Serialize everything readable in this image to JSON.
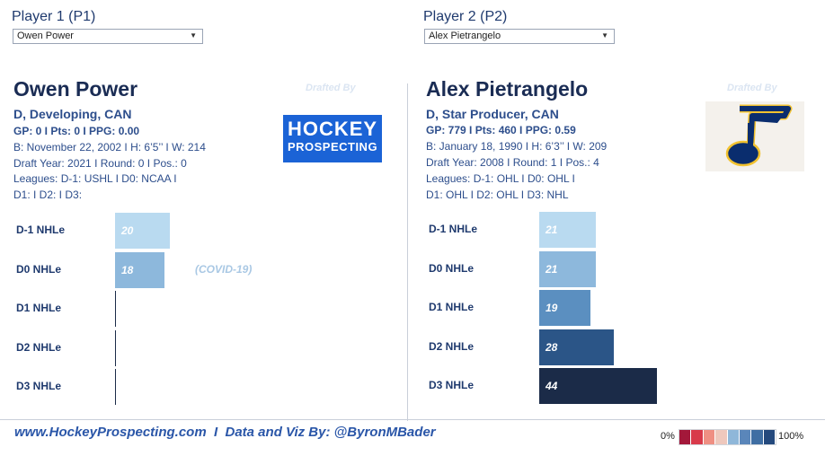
{
  "p1": {
    "selector_label": "Player 1 (P1)",
    "selected": "Owen Power",
    "name": "Owen Power",
    "position": "D, Developing, CAN",
    "stats": "GP: 0 I Pts: 0 I PPG: 0.00",
    "bio": "B: November 22, 2002 I H: 6’5’’ I W: 214",
    "draft": "Draft Year: 2021 I Round: 0 I Pos.: 0",
    "leagues1": "Leagues: D-1: USHL I D0: NCAA I",
    "leagues2": "D1:  I D2:  I D3:",
    "drafted_by": "Drafted By",
    "logo_line1": "HOCKEY",
    "logo_line2": "PROSPECTING",
    "note": "(COVID-19)",
    "rows": [
      {
        "label": "D-1 NHLe",
        "value": 20,
        "display": "20",
        "color": "#b9daf0"
      },
      {
        "label": "D0 NHLe",
        "value": 18,
        "display": "18",
        "color": "#8db8dc"
      },
      {
        "label": "D1 NHLe",
        "value": 0,
        "display": "",
        "color": "#1b2b48"
      },
      {
        "label": "D2 NHLe",
        "value": 0,
        "display": "",
        "color": "#1b2b48"
      },
      {
        "label": "D3 NHLe",
        "value": 0,
        "display": "",
        "color": "#1b2b48"
      }
    ]
  },
  "p2": {
    "selector_label": "Player 2 (P2)",
    "selected": "Alex Pietrangelo",
    "name": "Alex Pietrangelo",
    "position": "D, Star Producer, CAN",
    "stats": "GP: 779 I Pts: 460 I PPG: 0.59",
    "bio": "B: January 18, 1990 I H: 6’3’’ I W: 209",
    "draft": "Draft Year: 2008 I Round: 1 I Pos.: 4",
    "leagues1": "Leagues: D-1: OHL I D0: OHL I",
    "leagues2": "D1: OHL I D2: OHL I D3: NHL",
    "drafted_by": "Drafted By",
    "rows": [
      {
        "label": "D-1 NHLe",
        "value": 21,
        "display": "21",
        "color": "#b9daf0"
      },
      {
        "label": "D0 NHLe",
        "value": 21,
        "display": "21",
        "color": "#8db8dc"
      },
      {
        "label": "D1 NHLe",
        "value": 19,
        "display": "19",
        "color": "#5b8fc0"
      },
      {
        "label": "D2 NHLe",
        "value": 28,
        "display": "28",
        "color": "#2b5587"
      },
      {
        "label": "D3 NHLe",
        "value": 44,
        "display": "44",
        "color": "#1b2b48"
      }
    ]
  },
  "footer": {
    "text": "www.HockeyProspecting.com  I  Data and Viz By: @ByronMBader"
  },
  "legend": {
    "min": "0%",
    "max": "100%",
    "colors": [
      "#a3183a",
      "#d83a4a",
      "#ef8f83",
      "#eec8bd",
      "#8fb7d9",
      "#5a86ba",
      "#3f6ea3",
      "#24497d"
    ]
  },
  "icons": {
    "team_logo": "st-louis-blues-note-icon",
    "dropdown": "chevron-down-icon"
  }
}
